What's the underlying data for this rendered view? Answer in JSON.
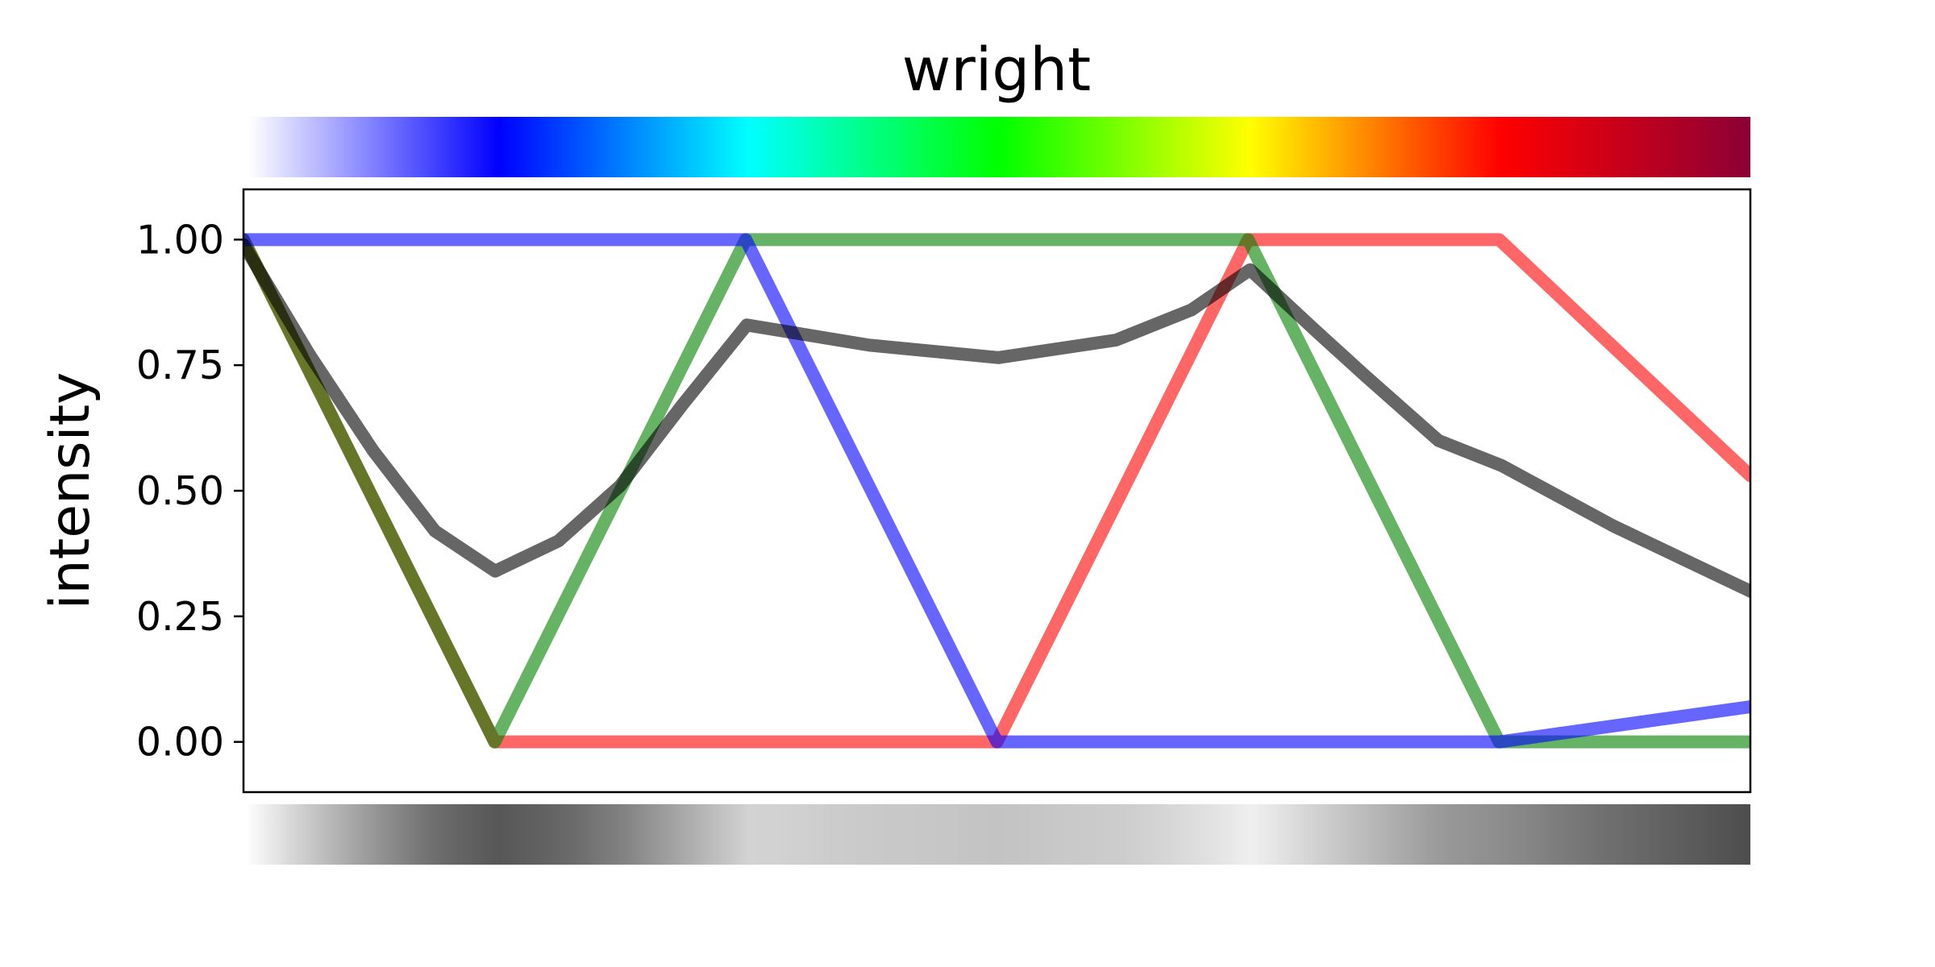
{
  "chart_data": {
    "type": "line",
    "title": "wright",
    "xlabel": "",
    "ylabel": "intensity",
    "xlim": [
      0,
      1
    ],
    "ylim": [
      -0.1,
      1.1
    ],
    "yticks": [
      "0.00",
      "0.25",
      "0.50",
      "0.75",
      "1.00"
    ],
    "grid": false,
    "legend": "none",
    "series": [
      {
        "color": "#ff0000",
        "x": [
          0,
          0.1667,
          0.3333,
          0.5,
          0.6667,
          0.8333,
          1
        ],
        "values": [
          1,
          0,
          0,
          0,
          1,
          1,
          0.53
        ]
      },
      {
        "color": "#008000",
        "x": [
          0,
          0.1667,
          0.3333,
          0.5,
          0.6667,
          0.8333,
          1
        ],
        "values": [
          1,
          0,
          1,
          1,
          1,
          0,
          0
        ]
      },
      {
        "color": "#0000ff",
        "x": [
          0,
          0.1667,
          0.3333,
          0.5,
          0.6667,
          0.8333,
          1
        ],
        "values": [
          1,
          1,
          1,
          0,
          0,
          0,
          0.07
        ]
      },
      {
        "color": "#000000",
        "x": [
          0,
          0.044,
          0.086,
          0.127,
          0.167,
          0.209,
          0.25,
          0.291,
          0.334,
          0.415,
          0.501,
          0.579,
          0.629,
          0.668,
          0.711,
          0.744,
          0.793,
          0.835,
          0.909,
          1
        ],
        "values": [
          0.99,
          0.77,
          0.58,
          0.42,
          0.34,
          0.4,
          0.51,
          0.67,
          0.83,
          0.79,
          0.765,
          0.8,
          0.86,
          0.94,
          0.82,
          0.73,
          0.6,
          0.55,
          0.43,
          0.3
        ]
      }
    ],
    "colorbars": [
      "color",
      "grayscale"
    ]
  }
}
